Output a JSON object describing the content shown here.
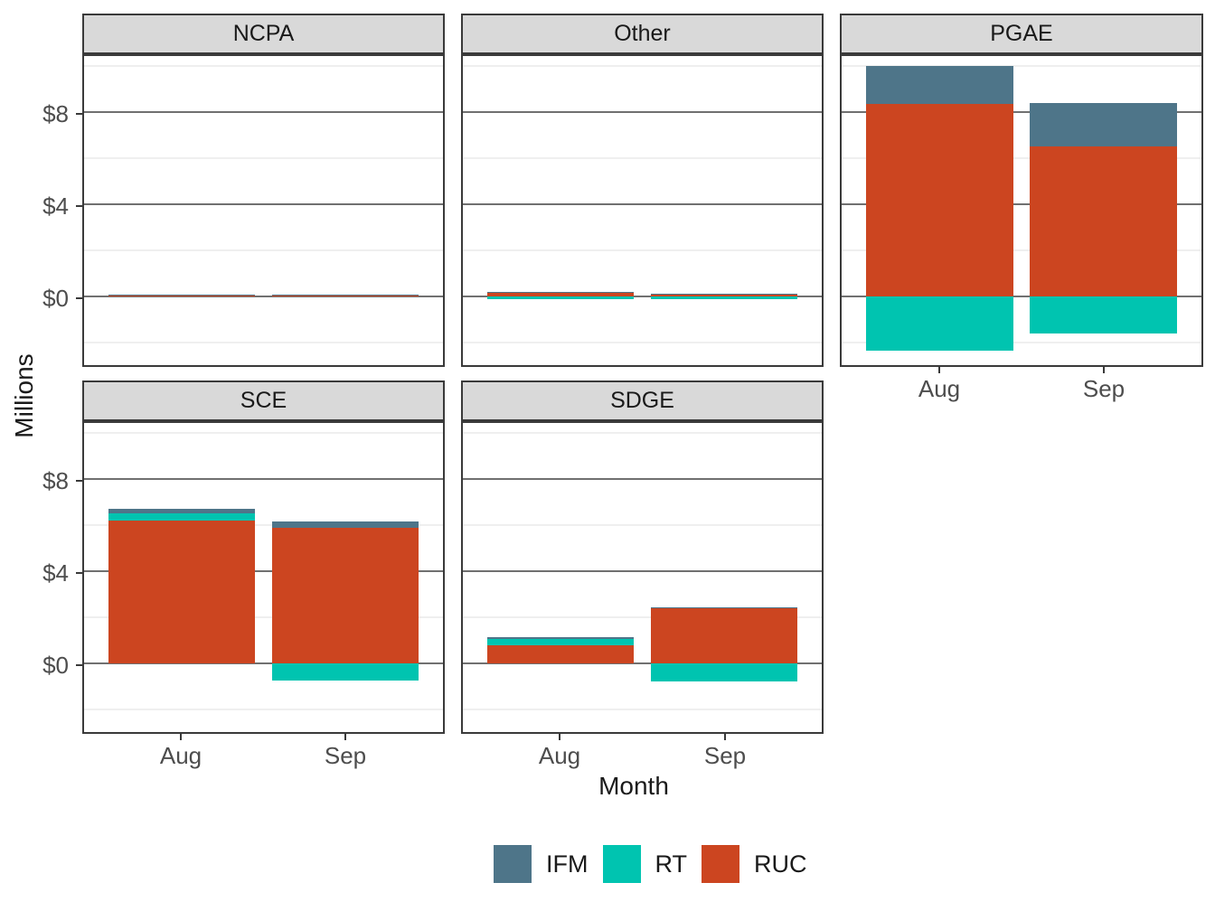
{
  "figure": {
    "y_axis_title": "Millions",
    "x_axis_title": "Month",
    "y_tick_labels": [
      "$8",
      "$4",
      "$0"
    ],
    "x_tick_labels": [
      "Aug",
      "Sep"
    ],
    "legend": {
      "items": [
        {
          "label": "IFM",
          "color": "#4E7589"
        },
        {
          "label": "RT",
          "color": "#00C4B0"
        },
        {
          "label": "RUC",
          "color": "#CC4520"
        }
      ]
    }
  },
  "chart_data": {
    "type": "bar",
    "stacked": true,
    "facet_field": "utility",
    "categories": [
      "Aug",
      "Sep"
    ],
    "xlabel": "Month",
    "ylabel": "Millions",
    "ylim": [
      -3.0,
      10.6
    ],
    "y_major_ticks": [
      0,
      4,
      8
    ],
    "y_minor_ticks": [
      -2,
      2,
      6,
      10
    ],
    "y_tick_format": "dollar_millions",
    "grid": true,
    "legend_position": "bottom",
    "stack_order": [
      "RUC",
      "RT",
      "IFM"
    ],
    "colors": {
      "IFM": "#4E7589",
      "RT": "#00C4B0",
      "RUC": "#CC4520"
    },
    "facets": [
      {
        "name": "NCPA",
        "series": [
          {
            "name": "IFM",
            "values": [
              0.01,
              0.01
            ]
          },
          {
            "name": "RT",
            "values": [
              0.06,
              0.06
            ]
          },
          {
            "name": "RUC",
            "values": [
              0.02,
              0.02
            ]
          }
        ]
      },
      {
        "name": "Other",
        "series": [
          {
            "name": "IFM",
            "values": [
              0.01,
              0.01
            ]
          },
          {
            "name": "RT",
            "values": [
              -0.1,
              -0.13
            ]
          },
          {
            "name": "RUC",
            "values": [
              0.18,
              0.12
            ]
          }
        ]
      },
      {
        "name": "PGAE",
        "series": [
          {
            "name": "IFM",
            "values": [
              1.65,
              1.9
            ]
          },
          {
            "name": "RT",
            "values": [
              -2.35,
              -1.6
            ]
          },
          {
            "name": "RUC",
            "values": [
              8.35,
              6.5
            ]
          }
        ]
      },
      {
        "name": "SCE",
        "series": [
          {
            "name": "IFM",
            "values": [
              0.22,
              0.26
            ]
          },
          {
            "name": "RT",
            "values": [
              0.3,
              -0.75
            ]
          },
          {
            "name": "RUC",
            "values": [
              6.2,
              5.9
            ]
          }
        ]
      },
      {
        "name": "SDGE",
        "series": [
          {
            "name": "IFM",
            "values": [
              0.08,
              0.05
            ]
          },
          {
            "name": "RT",
            "values": [
              0.27,
              -0.8
            ]
          },
          {
            "name": "RUC",
            "values": [
              0.78,
              2.4
            ]
          }
        ]
      }
    ]
  }
}
